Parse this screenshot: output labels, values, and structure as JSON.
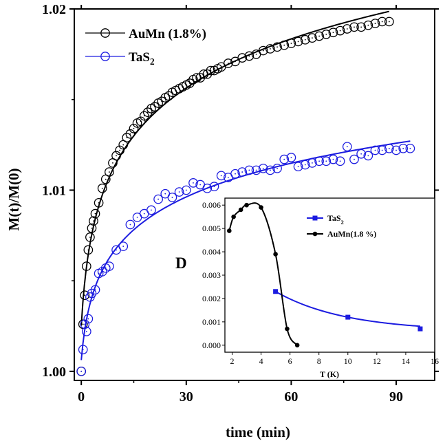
{
  "chart_data": [
    {
      "type": "scatter",
      "title": "",
      "xlabel": "time (min)",
      "ylabel": "M(t)/M(0)",
      "xlim": [
        -2,
        101
      ],
      "ylim": [
        0.9995,
        1.02
      ],
      "xticks": [
        0,
        30,
        60,
        90
      ],
      "xtick_labels": [
        "0",
        "30",
        "60",
        "90"
      ],
      "yticks": [
        1.0,
        1.01,
        1.02
      ],
      "ytick_labels": [
        "1.00",
        "1.01",
        "1.02"
      ],
      "legend": {
        "placement": "top-left"
      },
      "series": [
        {
          "name": "AuMn (1.8%)",
          "name_main": "AuMn (1.8%)",
          "color": "#000000",
          "marker": "open-circle",
          "fit_line": true,
          "x": [
            0,
            0.5,
            1,
            1.5,
            2,
            2.5,
            3,
            3.5,
            4,
            5,
            6,
            7,
            8,
            9,
            10,
            11,
            12,
            13,
            14,
            15,
            16,
            17,
            18,
            19,
            20,
            21,
            22,
            23,
            24,
            25,
            26,
            27,
            28,
            29,
            30,
            31,
            32,
            33,
            34,
            35,
            36,
            37,
            38,
            39,
            40,
            42,
            44,
            46,
            48,
            50,
            52,
            54,
            56,
            58,
            60,
            62,
            64,
            66,
            68,
            70,
            72,
            74,
            76,
            78,
            80,
            82,
            84,
            86,
            88
          ],
          "y": [
            1.0,
            1.0026,
            1.0042,
            1.0058,
            1.0067,
            1.0074,
            1.0079,
            1.0083,
            1.0087,
            1.0093,
            1.0101,
            1.0106,
            1.011,
            1.0115,
            1.0119,
            1.0122,
            1.0125,
            1.0129,
            1.0131,
            1.0134,
            1.0137,
            1.0138,
            1.0141,
            1.0143,
            1.0145,
            1.0146,
            1.0148,
            1.0149,
            1.0151,
            1.0152,
            1.0154,
            1.0155,
            1.0156,
            1.0157,
            1.0158,
            1.0159,
            1.0161,
            1.0162,
            1.0162,
            1.0164,
            1.0164,
            1.0166,
            1.0166,
            1.0167,
            1.0168,
            1.017,
            1.0171,
            1.0173,
            1.0174,
            1.0175,
            1.0177,
            1.0178,
            1.0179,
            1.018,
            1.0181,
            1.0182,
            1.0183,
            1.0184,
            1.0185,
            1.0186,
            1.0187,
            1.0188,
            1.0189,
            1.019,
            1.019,
            1.0191,
            1.0192,
            1.0193,
            1.0193
          ]
        },
        {
          "name": "TaS₂",
          "name_main": "TaS",
          "name_sub": "2",
          "color": "#1c1ce0",
          "marker": "open-circle",
          "fit_line": true,
          "x": [
            0,
            0.5,
            1,
            1.5,
            2,
            2.5,
            3,
            4,
            5,
            6,
            7,
            8,
            10,
            12,
            14,
            16,
            18,
            20,
            22,
            24,
            26,
            28,
            30,
            32,
            34,
            36,
            38,
            40,
            42,
            44,
            46,
            48,
            50,
            52,
            54,
            56,
            58,
            60,
            62,
            64,
            66,
            68,
            70,
            72,
            74,
            76,
            78,
            80,
            82,
            84,
            86,
            88,
            90,
            92,
            94
          ],
          "y": [
            1.0,
            1.0012,
            1.0026,
            1.0022,
            1.0029,
            1.0041,
            1.0043,
            1.0045,
            1.0054,
            1.0055,
            1.0057,
            1.0058,
            1.0067,
            1.0069,
            1.0081,
            1.0085,
            1.0087,
            1.0089,
            1.0095,
            1.0098,
            1.0096,
            1.0099,
            1.01,
            1.0104,
            1.0103,
            1.0101,
            1.0102,
            1.0108,
            1.0107,
            1.0109,
            1.011,
            1.0111,
            1.0111,
            1.0112,
            1.0111,
            1.0112,
            1.0117,
            1.0118,
            1.0113,
            1.0114,
            1.0115,
            1.0116,
            1.0116,
            1.0117,
            1.0116,
            1.0124,
            1.0117,
            1.012,
            1.0119,
            1.0122,
            1.0122,
            1.0123,
            1.0122,
            1.0123,
            1.0123
          ]
        }
      ]
    },
    {
      "type": "scatter",
      "title": "",
      "xlabel": "T (K)",
      "ylabel": "D",
      "xlim": [
        1.5,
        16
      ],
      "ylim": [
        -0.0003,
        0.0063
      ],
      "xticks": [
        2,
        4,
        6,
        8,
        10,
        12,
        14,
        16
      ],
      "xtick_labels": [
        "2",
        "4",
        "6",
        "8",
        "10",
        "12",
        "14",
        "16"
      ],
      "yticks": [
        0.0,
        0.001,
        0.002,
        0.003,
        0.004,
        0.005,
        0.006
      ],
      "ytick_labels": [
        "0.000",
        "0.001",
        "0.002",
        "0.003",
        "0.004",
        "0.005",
        "0.006"
      ],
      "legend": {
        "placement": "top-right"
      },
      "series": [
        {
          "name": "TaS₂",
          "name_main": "TaS",
          "name_sub": "2",
          "color": "#1c1ce0",
          "marker": "filled-square",
          "x": [
            5,
            10,
            15
          ],
          "y": [
            0.0023,
            0.0012,
            0.0007
          ]
        },
        {
          "name": "AuMn(1.8 %)",
          "name_main": "AuMn(1.8 %)",
          "color": "#000000",
          "marker": "filled-circle",
          "x": [
            1.8,
            2.1,
            2.6,
            3.0,
            4.0,
            5.0,
            5.8,
            6.5
          ],
          "y": [
            0.0049,
            0.0055,
            0.0058,
            0.006,
            0.0059,
            0.0039,
            0.0007,
            0.0
          ]
        }
      ]
    }
  ]
}
